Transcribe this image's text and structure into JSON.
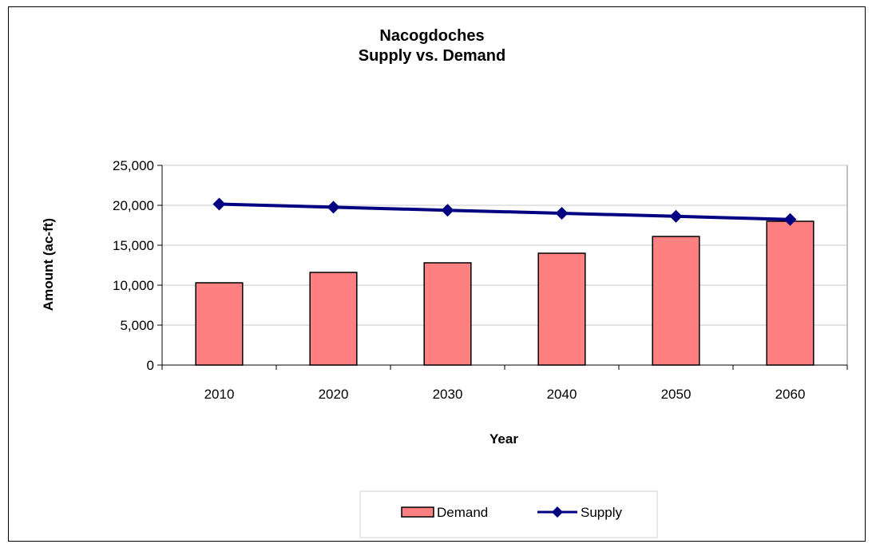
{
  "chart_data": {
    "type": "bar",
    "title": [
      "Nacogdoches",
      "Supply vs. Demand"
    ],
    "xlabel": "Year",
    "ylabel": "Amount (ac-ft)",
    "categories": [
      "2010",
      "2020",
      "2030",
      "2040",
      "2050",
      "2060"
    ],
    "ylim": [
      0,
      25000
    ],
    "yticks": [
      0,
      5000,
      10000,
      15000,
      20000,
      25000
    ],
    "ytick_labels": [
      "0",
      "5,000",
      "10,000",
      "15,000",
      "20,000",
      "25,000"
    ],
    "grid": true,
    "legend_position": "bottom",
    "series": [
      {
        "name": "Demand",
        "kind": "bar",
        "color": "#ff8080",
        "values": [
          10300,
          11600,
          12800,
          14000,
          16100,
          18000
        ]
      },
      {
        "name": "Supply",
        "kind": "line",
        "color": "#000080",
        "marker": "diamond",
        "values": [
          20150,
          19760,
          19380,
          19000,
          18620,
          18230
        ]
      }
    ]
  }
}
